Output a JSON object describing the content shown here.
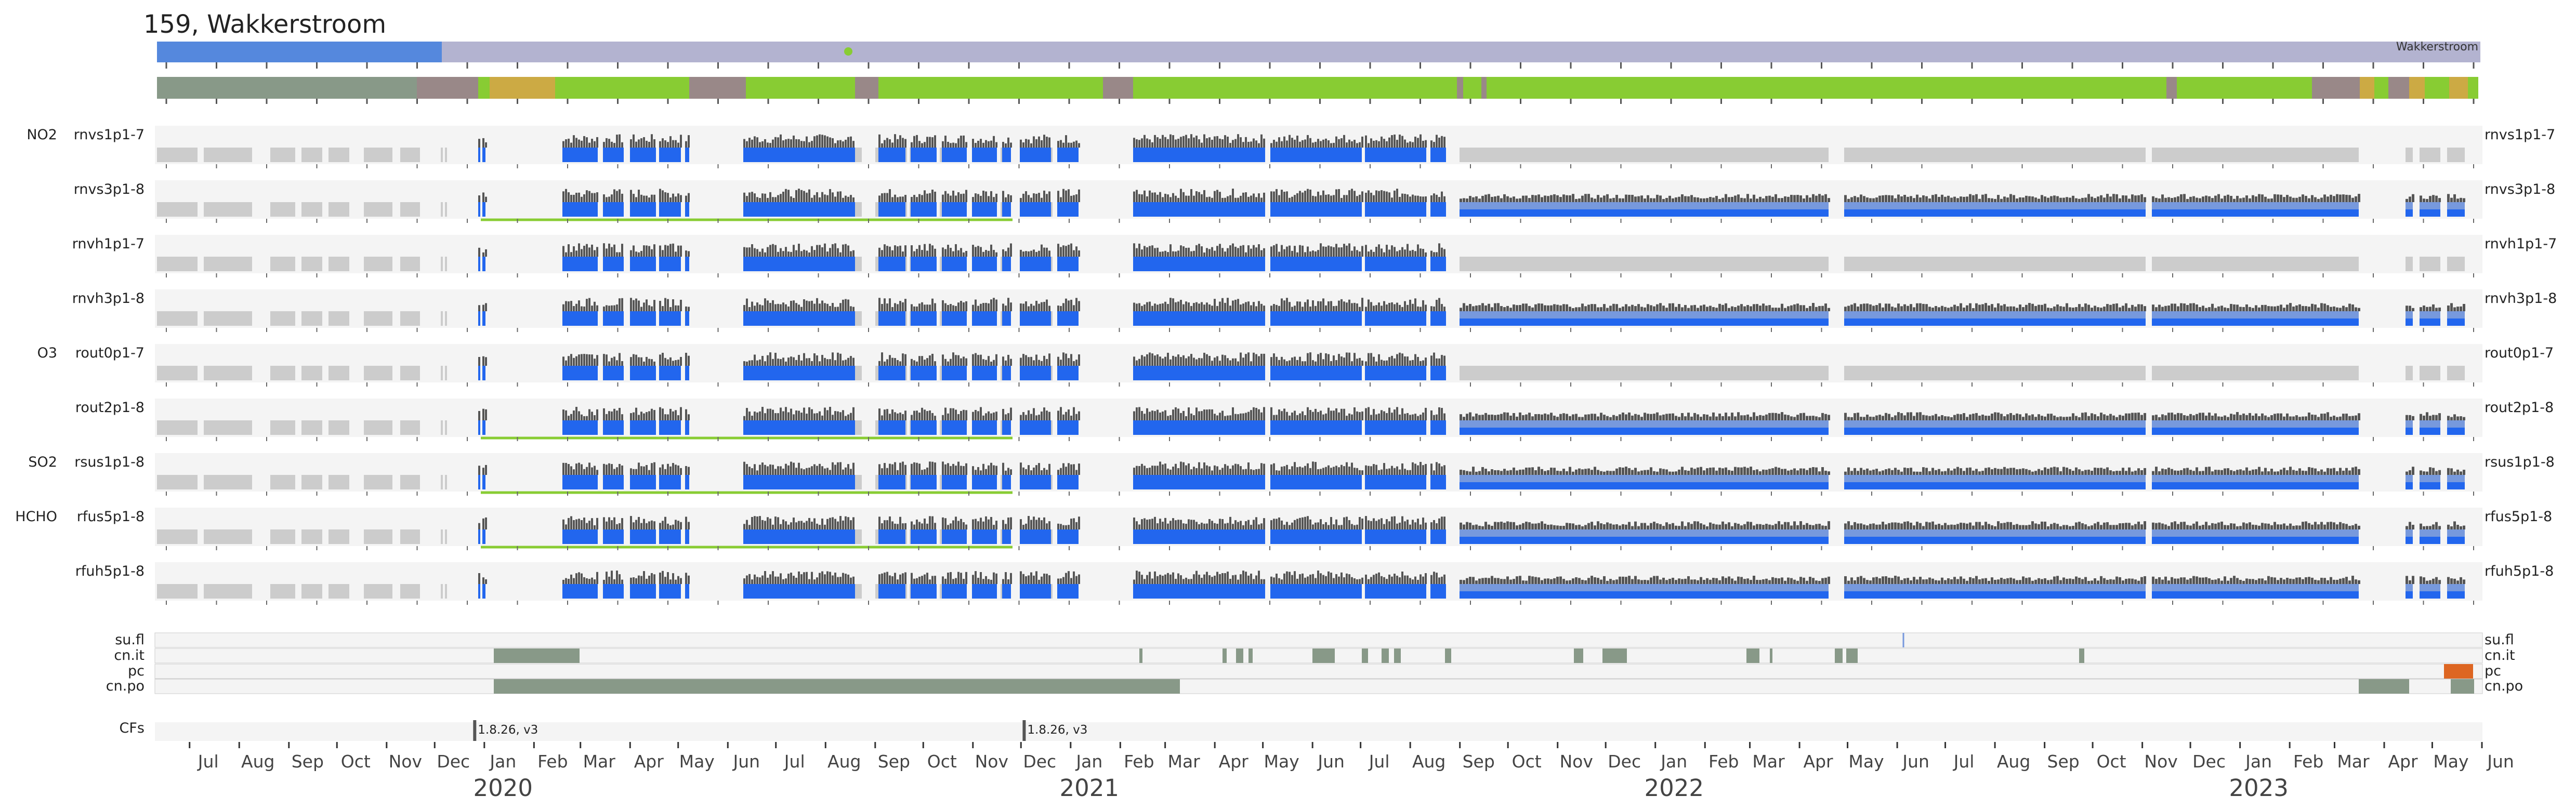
{
  "title": "159, Wakkerstroom",
  "station_label": "Wakkerstroom",
  "chart_data": {
    "type": "timeline",
    "x_range": [
      "2019-06-10",
      "2023-06-01"
    ],
    "months": [
      "Jul",
      "Aug",
      "Sep",
      "Oct",
      "Nov",
      "Dec",
      "Jan",
      "Feb",
      "Mar",
      "Apr",
      "May",
      "Jun",
      "Jul",
      "Aug",
      "Sep",
      "Oct",
      "Nov",
      "Dec",
      "Jan",
      "Feb",
      "Mar",
      "Apr",
      "May",
      "Jun",
      "Jul",
      "Aug",
      "Sep",
      "Oct",
      "Nov",
      "Dec",
      "Jan",
      "Feb",
      "Mar",
      "Apr",
      "May",
      "Jun",
      "Jul",
      "Aug",
      "Sep",
      "Oct",
      "Nov",
      "Dec",
      "Jan",
      "Feb",
      "Mar",
      "Apr",
      "May",
      "Jun"
    ],
    "years": [
      "2020",
      "2021",
      "2022",
      "2023"
    ],
    "products": [
      {
        "group": "NO2",
        "name": "rnvs1p1-7"
      },
      {
        "group": "",
        "name": "rnvs3p1-8"
      },
      {
        "group": "",
        "name": "rnvh1p1-7"
      },
      {
        "group": "",
        "name": "rnvh3p1-8"
      },
      {
        "group": "O3",
        "name": "rout0p1-7"
      },
      {
        "group": "",
        "name": "rout2p1-8"
      },
      {
        "group": "SO2",
        "name": "rsus1p1-8"
      },
      {
        "group": "HCHO",
        "name": "rfus5p1-8"
      },
      {
        "group": "",
        "name": "rfuh5p1-8"
      }
    ],
    "flags": [
      "su.fl",
      "cn.it",
      "pc",
      "cn.po"
    ],
    "cf_label": "CFs",
    "cf_events": [
      {
        "date": "2019-12-26",
        "label": "1.8.26, v3"
      },
      {
        "date": "2020-12-03",
        "label": "1.8.26, v3"
      }
    ]
  },
  "colors": {
    "blue": "#2266ee",
    "blue_light": "#7799dd",
    "dark": "#555555",
    "grey": "#cccccc",
    "green": "#88cc33",
    "sage": "#889988",
    "mauve": "#998888",
    "ochre": "#ccaa44",
    "orange": "#dd6622",
    "bar_blue": "#5588dd",
    "bar_lav": "#b3b3d0"
  }
}
